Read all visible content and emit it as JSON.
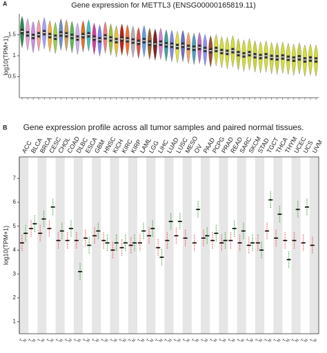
{
  "chart_data": [
    {
      "type": "violin",
      "panel_label": "A",
      "title": "Gene expression for METTL3 (ENSG00000165819.11)",
      "ylabel": "log10(TPM+1)",
      "ylim": [
        0,
        2
      ],
      "yticks": [
        0.5,
        1,
        1.5
      ],
      "categories": [
        null,
        null,
        null,
        null,
        null,
        null,
        null,
        null,
        null,
        null,
        null,
        null,
        null,
        null,
        null,
        null,
        null,
        null,
        null,
        null,
        null,
        null,
        null,
        null,
        null,
        null,
        null,
        null,
        null,
        null,
        null,
        null,
        null,
        null,
        null,
        null,
        null,
        null,
        null,
        null,
        null,
        null,
        null,
        null,
        null,
        null,
        null,
        null,
        null,
        null,
        null,
        null,
        null,
        null
      ],
      "values": [
        1.58,
        1.52,
        1.46,
        1.5,
        1.55,
        1.48,
        1.44,
        1.52,
        1.5,
        1.46,
        1.42,
        1.48,
        1.5,
        1.42,
        1.38,
        1.45,
        1.4,
        1.36,
        1.4,
        1.38,
        1.35,
        1.32,
        1.36,
        1.3,
        1.28,
        1.3,
        1.26,
        1.25,
        1.22,
        1.25,
        1.2,
        1.18,
        1.2,
        1.15,
        1.12,
        1.15,
        1.1,
        1.08,
        1.12,
        1.05,
        1.02,
        1.05,
        1.0,
        0.98,
        1.0,
        0.96,
        0.95,
        0.97,
        0.94,
        0.92,
        0.95,
        0.9,
        0.92,
        0.9
      ],
      "colors": [
        "#2e8b57",
        "#e8a0d0",
        "#c890e0",
        "#f0a0a0",
        "#a0a0ff",
        "#f5b042",
        "#9ad04a",
        "#6a8fd0",
        "#d0a060",
        "#5cb85c",
        "#c8b0e8",
        "#e07030",
        "#40c0c0",
        "#d040a0",
        "#8080ff",
        "#f08080",
        "#a0c040",
        "#e0c040",
        "#c02020",
        "#f07030",
        "#b0b0b0",
        "#e05050",
        "#60a0e0",
        "#a06030",
        "#802020",
        "#d080d0",
        "#40a0a0",
        "#8888dd",
        "#e0e040",
        "#7070c0",
        "#f0a060",
        "#50a0c0",
        "#c070c0",
        "#9090f0",
        "#a05030",
        "#d4dc3c",
        "#d4dc3c",
        "#d4dc3c",
        "#d4dc3c",
        "#c8d43a",
        "#d4dc3c",
        "#d4dc3c",
        "#c8d43a",
        "#d4dc3c",
        "#d4dc3c",
        "#d4dc3c",
        "#c8d43a",
        "#d4dc3c",
        "#d4dc3c",
        "#d4dc3c",
        "#c8d43a",
        "#d4dc3c",
        "#d4dc3c",
        "#d4dc3c"
      ]
    },
    {
      "type": "dot",
      "panel_label": "B",
      "title": "Gene expression profile across all tumor samples and paired normal tissues.",
      "ylabel": "log10(TPM+1)",
      "ylim": [
        0.5,
        7.9
      ],
      "yticks": [
        1,
        2,
        3,
        4,
        5,
        6,
        7
      ],
      "categories": [
        "ACC",
        "BLCA",
        "BRCA",
        "CESC",
        "CHOL",
        "COAD",
        "DLBC",
        "ESCA",
        "GBM",
        "HNSC",
        "KICH",
        "KIRC",
        "KIRP",
        "LAML",
        "LGG",
        "LIHC",
        "LUAD",
        "LUSC",
        "MESO",
        "OV",
        "PAAD",
        "PCPG",
        "PRAD",
        "READ",
        "SARC",
        "SKCM",
        "STAD",
        "TGCT",
        "THCA",
        "THYM",
        "UCEC",
        "UCS",
        "UVM"
      ],
      "label_colors": [
        "#000",
        "#000",
        "#000",
        "#2a9a2a",
        "#000",
        "#000",
        "#e8413c",
        "#000",
        "#000",
        "#000",
        "#000",
        "#000",
        "#000",
        "#000",
        "#000",
        "#000",
        "#2a9a2a",
        "#2a9a2a",
        "#000",
        "#2a9a2a",
        "#000",
        "#000",
        "#000",
        "#000",
        "#000",
        "#000",
        "#000",
        "#2a9a2a",
        "#2a9a2a",
        "#e8413c",
        "#2a9a2a",
        "#2a9a2a",
        "#000"
      ],
      "series": [
        {
          "name": "T",
          "color": "#e8413c",
          "values": [
            4.3,
            4.9,
            4.7,
            4.9,
            4.4,
            4.4,
            4.4,
            4.5,
            4.6,
            4.4,
            4.0,
            4.1,
            4.2,
            4.3,
            4.6,
            4.1,
            4.4,
            4.6,
            4.5,
            4.3,
            4.5,
            4.4,
            4.3,
            4.4,
            4.3,
            4.2,
            4.3,
            4.8,
            4.5,
            4.4,
            4.4,
            4.3,
            4.2
          ]
        },
        {
          "name": "N",
          "color": "#2a9a2a",
          "values": [
            4.7,
            5.1,
            5.3,
            5.8,
            4.8,
            4.9,
            3.1,
            4.2,
            4.8,
            4.3,
            4.3,
            4.3,
            4.3,
            4.8,
            4.9,
            3.7,
            5.2,
            5.2,
            null,
            5.7,
            4.6,
            4.7,
            4.4,
            4.9,
            4.8,
            4.3,
            4.0,
            6.1,
            5.5,
            3.6,
            5.7,
            5.8,
            null
          ]
        }
      ]
    }
  ]
}
